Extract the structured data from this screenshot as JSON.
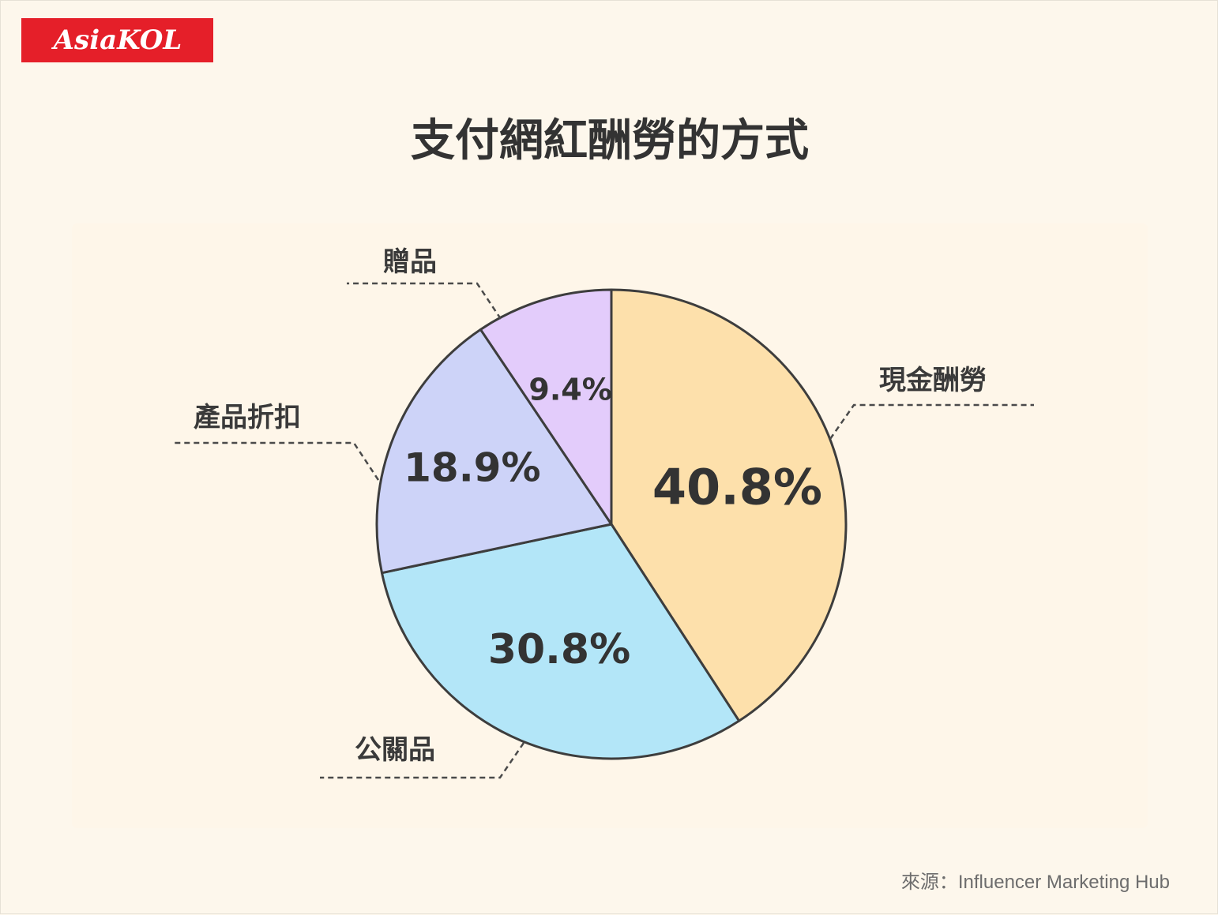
{
  "brand": {
    "name": "AsiaKOL",
    "color": "#e51f29"
  },
  "source_text": "來源：Influencer Marketing Hub",
  "chart_data": {
    "type": "pie",
    "title": "支付網紅酬勞的方式",
    "categories": [
      "現金酬勞",
      "公關品",
      "產品折扣",
      "贈品"
    ],
    "values": [
      40.8,
      30.8,
      18.9,
      9.4
    ],
    "value_labels": [
      "40.8%",
      "30.8%",
      "18.9%",
      "9.4%"
    ],
    "unit": "%",
    "colors": [
      "#fde0ab",
      "#b3e6f8",
      "#cdd3f8",
      "#e3ccfb"
    ],
    "start_angle": "12 o'clock",
    "direction": "clockwise",
    "legend": "none",
    "labels": "outside with dashed leader lines"
  }
}
